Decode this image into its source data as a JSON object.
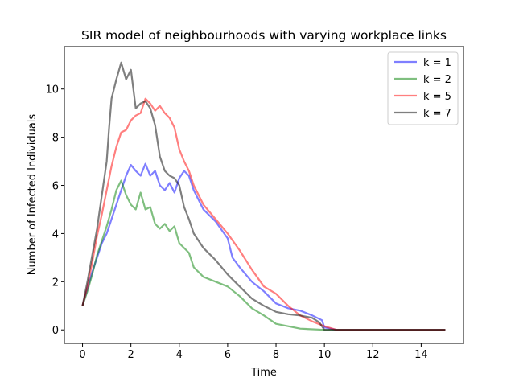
{
  "chart_data": {
    "type": "line",
    "title": "SIR model of neighbourhoods with varying workplace links",
    "xlabel": "Time",
    "ylabel": "Number of Infected Individuals",
    "xlim": [
      -0.75,
      15.75
    ],
    "ylim": [
      -0.56,
      11.76
    ],
    "xticks": [
      0,
      2,
      4,
      6,
      8,
      10,
      12,
      14
    ],
    "yticks": [
      0,
      2,
      4,
      6,
      8,
      10
    ],
    "grid": false,
    "legend_position": "top-right",
    "series": [
      {
        "name": "k = 1",
        "color": "#0000ff",
        "x": [
          0,
          0.2,
          0.4,
          0.6,
          0.8,
          1.0,
          1.2,
          1.4,
          1.6,
          1.8,
          2.0,
          2.2,
          2.4,
          2.6,
          2.8,
          3.0,
          3.2,
          3.4,
          3.6,
          3.8,
          4.0,
          4.2,
          4.4,
          4.6,
          5.0,
          5.5,
          6.0,
          6.2,
          6.5,
          7.0,
          7.5,
          8.0,
          8.5,
          9.0,
          9.5,
          9.9,
          10.0,
          10.5,
          15
        ],
        "values": [
          1.0,
          1.7,
          2.4,
          3.0,
          3.6,
          4.0,
          4.6,
          5.2,
          5.8,
          6.4,
          6.85,
          6.6,
          6.4,
          6.9,
          6.4,
          6.6,
          6.0,
          5.8,
          6.1,
          5.7,
          6.3,
          6.6,
          6.4,
          5.8,
          5.0,
          4.5,
          3.8,
          3.0,
          2.6,
          2.0,
          1.6,
          1.1,
          0.9,
          0.8,
          0.6,
          0.4,
          0.1,
          0.0,
          0.0
        ]
      },
      {
        "name": "k = 2",
        "color": "#008000",
        "x": [
          0,
          0.2,
          0.4,
          0.6,
          0.8,
          1.0,
          1.2,
          1.4,
          1.6,
          1.8,
          2.0,
          2.2,
          2.4,
          2.6,
          2.8,
          3.0,
          3.2,
          3.4,
          3.6,
          3.8,
          4.0,
          4.2,
          4.4,
          4.6,
          5.0,
          5.5,
          6.0,
          6.5,
          7.0,
          7.5,
          8.0,
          9.0,
          10.0,
          15
        ],
        "values": [
          1.0,
          1.6,
          2.3,
          3.1,
          3.7,
          4.3,
          5.0,
          5.8,
          6.2,
          5.6,
          5.2,
          5.0,
          5.7,
          5.0,
          5.1,
          4.4,
          4.2,
          4.4,
          4.1,
          4.3,
          3.6,
          3.4,
          3.2,
          2.6,
          2.2,
          2.0,
          1.8,
          1.4,
          0.9,
          0.6,
          0.25,
          0.05,
          0.0,
          0.0
        ]
      },
      {
        "name": "k = 5",
        "color": "#ff0000",
        "x": [
          0,
          0.2,
          0.4,
          0.6,
          0.8,
          1.0,
          1.2,
          1.4,
          1.6,
          1.8,
          2.0,
          2.2,
          2.4,
          2.6,
          2.8,
          3.0,
          3.2,
          3.4,
          3.6,
          3.8,
          4.0,
          4.2,
          4.4,
          4.6,
          5.0,
          5.5,
          6.0,
          6.5,
          7.0,
          7.5,
          8.0,
          8.5,
          9.0,
          9.5,
          10.0,
          10.5,
          15
        ],
        "values": [
          1.0,
          1.8,
          2.8,
          3.9,
          4.8,
          5.8,
          6.8,
          7.6,
          8.2,
          8.3,
          8.7,
          8.9,
          9.0,
          9.6,
          9.4,
          9.1,
          9.3,
          9.0,
          8.8,
          8.4,
          7.5,
          7.0,
          6.6,
          6.0,
          5.2,
          4.6,
          4.0,
          3.3,
          2.5,
          1.8,
          1.5,
          1.0,
          0.6,
          0.35,
          0.15,
          0.0,
          0.0
        ]
      },
      {
        "name": "k = 7",
        "color": "#000000",
        "x": [
          0,
          0.2,
          0.4,
          0.6,
          0.8,
          1.0,
          1.1,
          1.2,
          1.4,
          1.6,
          1.8,
          2.0,
          2.2,
          2.4,
          2.6,
          2.8,
          3.0,
          3.2,
          3.4,
          3.6,
          3.8,
          4.0,
          4.2,
          4.4,
          4.6,
          5.0,
          5.5,
          6.0,
          6.5,
          7.0,
          7.5,
          8.0,
          8.5,
          9.0,
          9.5,
          9.8,
          10.0,
          15
        ],
        "values": [
          1.0,
          2.0,
          3.1,
          4.2,
          5.6,
          7.0,
          8.4,
          9.6,
          10.4,
          11.1,
          10.4,
          10.8,
          9.2,
          9.4,
          9.5,
          9.2,
          8.5,
          7.2,
          6.6,
          6.4,
          6.3,
          6.0,
          5.1,
          4.6,
          4.0,
          3.4,
          2.9,
          2.3,
          1.8,
          1.3,
          1.0,
          0.75,
          0.65,
          0.6,
          0.5,
          0.3,
          0.0,
          0.0
        ]
      }
    ]
  }
}
